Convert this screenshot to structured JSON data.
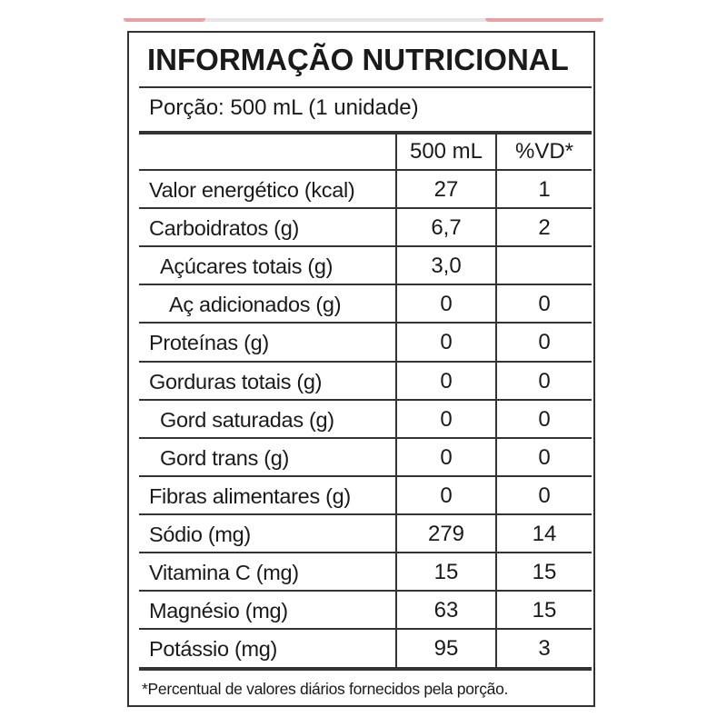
{
  "title": "INFORMAÇÃO NUTRICIONAL",
  "portion": "Porção: 500 mL (1 unidade)",
  "columns": {
    "amount": "500 mL",
    "dv": "%VD*"
  },
  "rows": [
    {
      "label": "Valor energético (kcal)",
      "amount": "27",
      "dv": "1",
      "indent": 0
    },
    {
      "label": "Carboidratos (g)",
      "amount": "6,7",
      "dv": "2",
      "indent": 0
    },
    {
      "label": "Açúcares totais (g)",
      "amount": "3,0",
      "dv": "",
      "indent": 1
    },
    {
      "label": "Aç adicionados (g)",
      "amount": "0",
      "dv": "0",
      "indent": 2
    },
    {
      "label": "Proteínas (g)",
      "amount": "0",
      "dv": "0",
      "indent": 0
    },
    {
      "label": "Gorduras totais (g)",
      "amount": "0",
      "dv": "0",
      "indent": 0
    },
    {
      "label": "Gord saturadas (g)",
      "amount": "0",
      "dv": "0",
      "indent": 1
    },
    {
      "label": "Gord trans (g)",
      "amount": "0",
      "dv": "0",
      "indent": 1
    },
    {
      "label": "Fibras alimentares (g)",
      "amount": "0",
      "dv": "0",
      "indent": 0
    },
    {
      "label": "Sódio (mg)",
      "amount": "279",
      "dv": "14",
      "indent": 0
    },
    {
      "label": "Vitamina C (mg)",
      "amount": "15",
      "dv": "15",
      "indent": 0
    },
    {
      "label": "Magnésio (mg)",
      "amount": "63",
      "dv": "15",
      "indent": 0
    },
    {
      "label": "Potássio (mg)",
      "amount": "95",
      "dv": "3",
      "indent": 0
    }
  ],
  "footnote": "*Percentual de valores diários fornecidos pela porção."
}
